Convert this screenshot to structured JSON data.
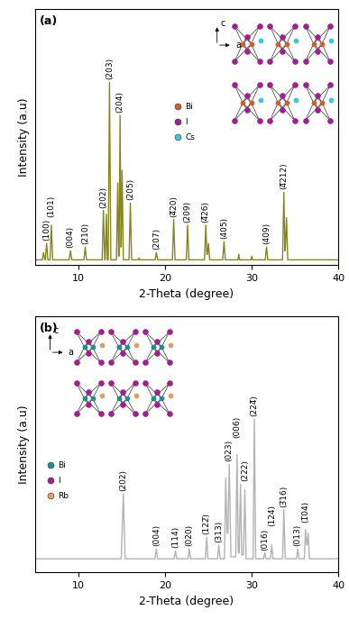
{
  "chart_data": [
    {
      "type": "line",
      "panel": "(a)",
      "x_label": "2-Theta (degree)",
      "y_label": "Intensity (a.u)",
      "color": "#86861c",
      "xlim": [
        5,
        40
      ],
      "ylim": [
        0,
        140
      ],
      "xticks": [
        10,
        20,
        30,
        40
      ],
      "tick_labels": "x",
      "x": [
        5,
        5.85,
        6.0,
        6.15,
        6.2,
        6.35,
        6.5,
        6.75,
        6.9,
        7.05,
        8.95,
        9.1,
        9.25,
        10.65,
        10.8,
        10.95,
        12.75,
        12.9,
        13.05,
        13.1,
        13.25,
        13.35,
        13.45,
        13.6,
        13.75,
        14.4,
        14.55,
        14.65,
        14.7,
        14.82,
        14.92,
        14.95,
        15.05,
        15.2,
        15.85,
        16.0,
        16.15,
        16.9,
        17.0,
        17.1,
        18.85,
        19.0,
        19.15,
        20.85,
        21.0,
        21.15,
        22.45,
        22.6,
        22.75,
        24.55,
        24.7,
        24.82,
        24.88,
        25.0,
        25.15,
        26.65,
        26.8,
        26.95,
        28.4,
        28.5,
        28.6,
        29.9,
        30.0,
        30.1,
        31.55,
        31.7,
        31.85,
        33.55,
        33.7,
        33.82,
        33.86,
        34.0,
        34.15,
        40
      ],
      "values": [
        3,
        3,
        7,
        3,
        3,
        12,
        3,
        3,
        22,
        3,
        3,
        8,
        3,
        3,
        10,
        3,
        3,
        30,
        3,
        3,
        28,
        3,
        3,
        100,
        3,
        3,
        45,
        5,
        5,
        82,
        10,
        10,
        52,
        3,
        3,
        34,
        3,
        3,
        4,
        3,
        3,
        7,
        3,
        3,
        25,
        3,
        3,
        22,
        3,
        3,
        22,
        6,
        6,
        12,
        3,
        3,
        13,
        3,
        3,
        6,
        3,
        3,
        5,
        3,
        3,
        10,
        3,
        3,
        40,
        8,
        8,
        26,
        3,
        3
      ],
      "peak_labels": [
        {
          "label": "(100)",
          "x": 6.35
        },
        {
          "label": "(101)",
          "x": 6.9
        },
        {
          "label": "(004)",
          "x": 9.1
        },
        {
          "label": "(210)",
          "x": 10.8
        },
        {
          "label": "(202)",
          "x": 12.9
        },
        {
          "label": "(203)",
          "x": 13.6
        },
        {
          "label": "(204)",
          "x": 14.82
        },
        {
          "label": "(205)",
          "x": 16.0
        },
        {
          "label": "(207)",
          "x": 19.0
        },
        {
          "label": "(4̅20)",
          "x": 21.0
        },
        {
          "label": "(209)",
          "x": 22.6
        },
        {
          "label": "(4̅26)",
          "x": 24.7
        },
        {
          "label": "(405)",
          "x": 26.8
        },
        {
          "label": "(409)",
          "x": 31.7
        },
        {
          "label": "(4̅212)",
          "x": 33.7
        }
      ],
      "inset": {
        "axes": [
          "c",
          "a"
        ],
        "atoms": [
          {
            "name": "Bi",
            "color": "#d0602a"
          },
          {
            "name": "I",
            "color": "#a0208f"
          },
          {
            "name": "Cs",
            "color": "#3cc8d8"
          }
        ]
      }
    },
    {
      "type": "line",
      "panel": "(b)",
      "x_label": "2-Theta (degree)",
      "y_label": "Intensity (a.u)",
      "color": "#b3b3b3",
      "xlim": [
        5,
        40
      ],
      "ylim": [
        0,
        130
      ],
      "xticks": [
        10,
        20,
        30,
        40
      ],
      "tick_labels": "x",
      "x": [
        5,
        14.95,
        15.2,
        15.4,
        18.85,
        19.0,
        19.15,
        21.05,
        21.2,
        21.35,
        22.65,
        22.8,
        22.95,
        24.65,
        24.8,
        24.95,
        26.05,
        26.2,
        26.35,
        26.85,
        27.0,
        27.15,
        27.25,
        27.4,
        27.6,
        28.15,
        28.3,
        28.45,
        28.55,
        28.7,
        28.85,
        29.05,
        29.2,
        29.35,
        30.15,
        30.3,
        30.45,
        31.35,
        31.5,
        31.65,
        32.15,
        32.3,
        32.45,
        33.55,
        33.7,
        33.85,
        35.15,
        35.3,
        35.45,
        36.05,
        36.2,
        36.32,
        36.38,
        36.5,
        36.65,
        40
      ],
      "values": [
        7,
        7,
        40,
        7,
        7,
        12,
        7,
        7,
        11,
        7,
        7,
        12,
        7,
        7,
        18,
        7,
        7,
        14,
        7,
        7,
        48,
        20,
        20,
        55,
        8,
        8,
        60,
        10,
        10,
        45,
        9,
        9,
        42,
        7,
        7,
        78,
        7,
        7,
        10,
        7,
        7,
        14,
        7,
        7,
        32,
        7,
        7,
        12,
        7,
        7,
        22,
        14,
        14,
        20,
        7,
        7
      ],
      "peak_labels": [
        {
          "label": "(202)",
          "x": 15.2
        },
        {
          "label": "(004)",
          "x": 19.0
        },
        {
          "label": "(114)",
          "x": 21.2
        },
        {
          "label": "(020)",
          "x": 22.8
        },
        {
          "label": "(122̅)",
          "x": 24.8
        },
        {
          "label": "(313)",
          "x": 26.2
        },
        {
          "label": "(023)",
          "x": 27.4
        },
        {
          "label": "(006)",
          "x": 28.3
        },
        {
          "label": "(222)",
          "x": 29.2
        },
        {
          "label": "(224̅)",
          "x": 30.3
        },
        {
          "label": "(016)",
          "x": 31.5
        },
        {
          "label": "(124)",
          "x": 32.3
        },
        {
          "label": "(3̅16)",
          "x": 33.7
        },
        {
          "label": "(013)",
          "x": 35.3
        },
        {
          "label": "(1̅04)",
          "x": 36.2
        }
      ],
      "inset": {
        "axes": [
          "c",
          "a"
        ],
        "atoms": [
          {
            "name": "Bi",
            "color": "#1f8f8f"
          },
          {
            "name": "I",
            "color": "#a0208f"
          },
          {
            "name": "Rb",
            "color": "#e0a060"
          }
        ]
      }
    }
  ]
}
